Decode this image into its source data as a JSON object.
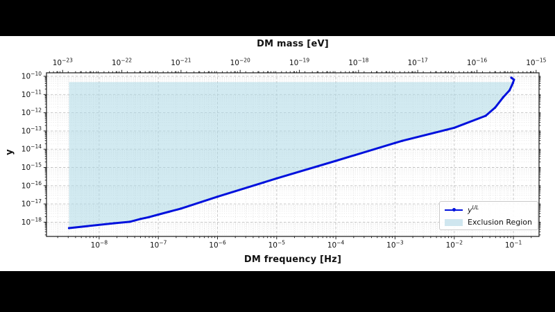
{
  "figure": {
    "background": "#ffffff",
    "letterbox_color": "#000000"
  },
  "axes": {
    "top_label": "DM mass [eV]",
    "bottom_label": "DM frequency [Hz]",
    "y_label": "y"
  },
  "legend": {
    "series_base": "y",
    "series_sup": "UL",
    "region_label": "Exclusion Region",
    "line_color": "#0011dd",
    "patch_color": "#cfe6ef"
  },
  "chart_data": {
    "type": "line",
    "title": "",
    "xlabel": "DM frequency [Hz]",
    "top_xlabel": "DM mass [eV]",
    "ylabel": "y",
    "x_scale": "log",
    "y_scale": "log",
    "xlim": [
      1.29e-09,
      0.271
    ],
    "ylim": [
      1.65e-19,
      1.55e-10
    ],
    "x_tick_exponents": [
      -8,
      -7,
      -6,
      -5,
      -4,
      -3,
      -2,
      -1
    ],
    "top_tick_exponents": [
      -23,
      -22,
      -21,
      -20,
      -19,
      -18,
      -17,
      -16,
      -15
    ],
    "y_tick_exponents": [
      -10,
      -11,
      -12,
      -13,
      -14,
      -15,
      -16,
      -17,
      -18
    ],
    "mass_ev_per_hz": 4.136e-15,
    "grid": "both",
    "legend_position": "lower right",
    "series": [
      {
        "name": "y^{UL}",
        "color": "#0011dd",
        "marker": "point",
        "x": [
          3.1e-09,
          1.8e-08,
          3.3e-08,
          5e-08,
          7e-08,
          1e-07,
          1.5e-07,
          2.4e-07,
          1e-06,
          6e-06,
          1e-05,
          0.0001,
          0.001,
          0.00133,
          0.01,
          0.034,
          0.049,
          0.067,
          0.086,
          0.098,
          0.102,
          0.092
        ],
        "y": [
          4.7e-19,
          8.7e-19,
          1.05e-18,
          1.5e-18,
          1.9e-18,
          2.6e-18,
          3.7e-18,
          5.5e-18,
          2.5e-17,
          1.5e-16,
          2.5e-16,
          2.3e-15,
          2.2e-14,
          2.9e-14,
          1.5e-13,
          6.8e-13,
          1.9e-12,
          7e-12,
          1.7e-11,
          4.2e-11,
          6.5e-11,
          8.4e-11
        ]
      }
    ],
    "exclusion_region": {
      "label": "Exclusion Region",
      "color": "#add8e6",
      "alpha": 0.55,
      "x_start": 3.1e-09,
      "x_end": 0.102,
      "y_top": 4.8e-11
    }
  }
}
